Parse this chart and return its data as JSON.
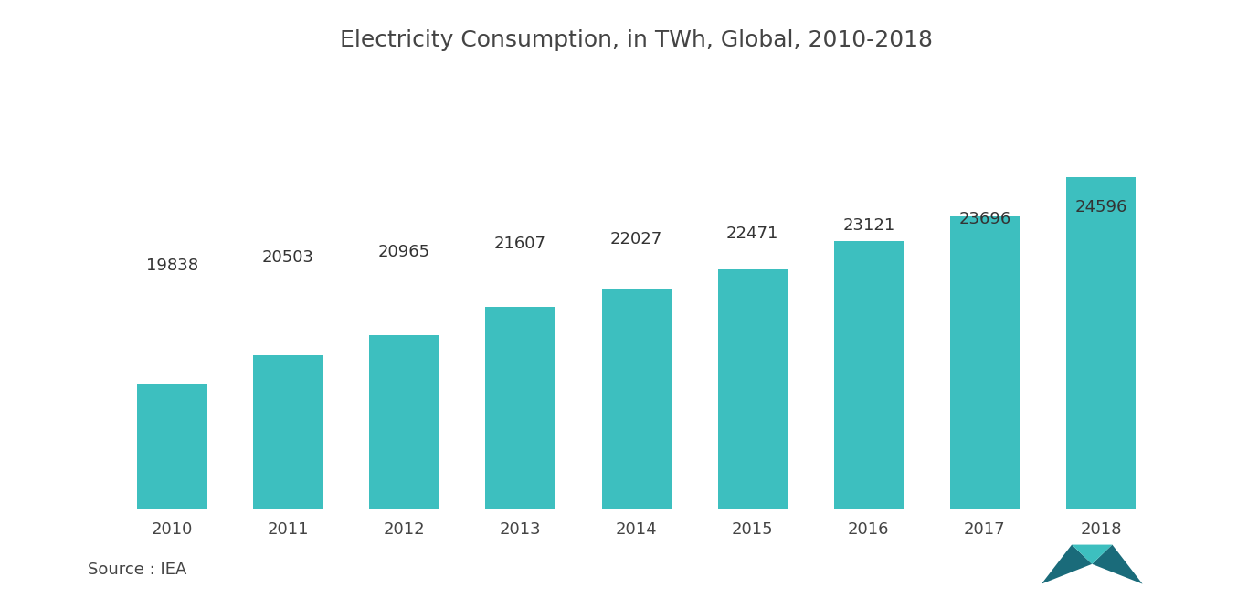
{
  "title": "Electricity Consumption, in TWh, Global, 2010-2018",
  "years": [
    2010,
    2011,
    2012,
    2013,
    2014,
    2015,
    2016,
    2017,
    2018
  ],
  "values": [
    19838,
    20503,
    20965,
    21607,
    22027,
    22471,
    23121,
    23696,
    24596
  ],
  "bar_color": "#3DBFBF",
  "background_color": "#ffffff",
  "text_color": "#444444",
  "label_color": "#333333",
  "title_fontsize": 18,
  "label_fontsize": 13,
  "tick_fontsize": 13,
  "source_text": "Source : IEA",
  "source_fontsize": 13,
  "ylim_min": 17000,
  "ylim_max": 27000,
  "bar_width": 0.6,
  "logo_left_color": "#1a6b7a",
  "logo_right_color": "#1a6b7a",
  "logo_mid_color": "#3DBFBF"
}
